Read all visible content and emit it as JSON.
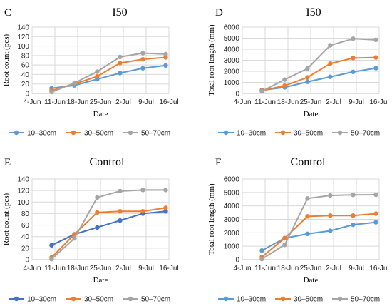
{
  "chart_data": [
    {
      "panel": "C",
      "type": "line",
      "title": "I50",
      "xlabel": "Date",
      "ylabel": "Root count (pcs)",
      "x_ticks": [
        "4-Jun",
        "11-Jun",
        "18-Jun",
        "25-Jun",
        "2-Jul",
        "9-Jul",
        "16-Jul"
      ],
      "ylim": [
        0,
        140
      ],
      "y_ticks": [
        0,
        20,
        40,
        60,
        80,
        100,
        120,
        140
      ],
      "x": [
        "10-Jun",
        "17-Jun",
        "24-Jun",
        "1-Jul",
        "8-Jul",
        "15-Jul"
      ],
      "series": [
        {
          "name": "10–30cm",
          "color": "#5B9BD5",
          "values": [
            11,
            17,
            30,
            43,
            53,
            59
          ]
        },
        {
          "name": "30–50cm",
          "color": "#ED7D31",
          "values": [
            6,
            20,
            36,
            64,
            72,
            76
          ]
        },
        {
          "name": "50–70cm",
          "color": "#A5A5A5",
          "values": [
            3,
            22,
            46,
            77,
            85,
            83
          ]
        }
      ],
      "grid": true,
      "legend": "bottom"
    },
    {
      "panel": "D",
      "type": "line",
      "title": "I50",
      "xlabel": "Date",
      "ylabel": "Total root length (mm)",
      "x_ticks": [
        "4-Jun",
        "11-Jun",
        "18-Jun",
        "25-Jun",
        "2-Jul",
        "9-Jul",
        "16-Jul"
      ],
      "ylim": [
        0,
        6000
      ],
      "y_ticks": [
        0,
        1000,
        2000,
        3000,
        4000,
        5000,
        6000
      ],
      "x": [
        "10-Jun",
        "17-Jun",
        "24-Jun",
        "1-Jul",
        "8-Jul",
        "15-Jul"
      ],
      "series": [
        {
          "name": "10–30cm",
          "color": "#5B9BD5",
          "values": [
            300,
            550,
            1050,
            1500,
            1950,
            2280
          ]
        },
        {
          "name": "30–50cm",
          "color": "#ED7D31",
          "values": [
            250,
            700,
            1450,
            2700,
            3200,
            3250
          ]
        },
        {
          "name": "50–70cm",
          "color": "#A5A5A5",
          "values": [
            200,
            1250,
            2250,
            4350,
            4950,
            4850
          ]
        }
      ],
      "grid": true,
      "legend": "bottom"
    },
    {
      "panel": "E",
      "type": "line",
      "title": "Control",
      "xlabel": "Date",
      "ylabel": "Root count (pcs)",
      "x_ticks": [
        "4-Jun",
        "11-Jun",
        "18-Jun",
        "25-Jun",
        "2-Jul",
        "9-Jul",
        "16-Jul"
      ],
      "ylim": [
        0,
        140
      ],
      "y_ticks": [
        0,
        20,
        40,
        60,
        80,
        100,
        120,
        140
      ],
      "x": [
        "10-Jun",
        "17-Jun",
        "24-Jun",
        "1-Jul",
        "8-Jul",
        "15-Jul"
      ],
      "series": [
        {
          "name": "10–30cm",
          "color": "#4472C4",
          "values": [
            25,
            44,
            56,
            68,
            80,
            84
          ]
        },
        {
          "name": "30–50cm",
          "color": "#ED7D31",
          "values": [
            4,
            44,
            82,
            84,
            84,
            90
          ]
        },
        {
          "name": "50–70cm",
          "color": "#A5A5A5",
          "values": [
            1,
            37,
            108,
            119,
            121,
            121
          ]
        }
      ],
      "grid": true,
      "legend": "bottom"
    },
    {
      "panel": "F",
      "type": "line",
      "title": "Control",
      "xlabel": "Date",
      "ylabel": "Total root length (mm)",
      "x_ticks": [
        "4-Jun",
        "11-Jun",
        "18-Jun",
        "25-Jun",
        "2-Jul",
        "9-Jul",
        "16-Jul"
      ],
      "ylim": [
        0,
        6000
      ],
      "y_ticks": [
        0,
        1000,
        2000,
        3000,
        4000,
        5000,
        6000
      ],
      "x": [
        "10-Jun",
        "17-Jun",
        "24-Jun",
        "1-Jul",
        "8-Jul",
        "15-Jul"
      ],
      "series": [
        {
          "name": "10–30cm",
          "color": "#5B9BD5",
          "values": [
            680,
            1600,
            1920,
            2150,
            2600,
            2780
          ]
        },
        {
          "name": "30–50cm",
          "color": "#ED7D31",
          "values": [
            200,
            1600,
            3220,
            3280,
            3280,
            3420
          ]
        },
        {
          "name": "50–70cm",
          "color": "#A5A5A5",
          "values": [
            50,
            1100,
            4550,
            4780,
            4820,
            4830
          ]
        }
      ],
      "grid": true,
      "legend": "bottom"
    }
  ]
}
